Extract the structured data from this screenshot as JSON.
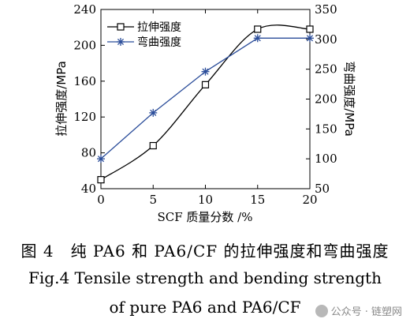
{
  "chart_data": {
    "type": "line",
    "x_categories_label": "SCF 质量分数 /%",
    "x": [
      0,
      5,
      10,
      15,
      20
    ],
    "xlim": [
      0,
      20
    ],
    "x_ticks": [
      0,
      5,
      10,
      15,
      20
    ],
    "ylabel_left": "拉伸强度/MPa",
    "ylim_left": [
      40,
      240
    ],
    "y_ticks_left": [
      40,
      80,
      120,
      160,
      200,
      240
    ],
    "ylabel_right": "弯曲强度/MPa",
    "ylim_right": [
      50,
      350
    ],
    "y_ticks_right": [
      50,
      100,
      150,
      200,
      250,
      300,
      350
    ],
    "legend_position": "top-left",
    "series": [
      {
        "name": "拉伸强度",
        "axis": "left",
        "marker": "square",
        "color": "#000000",
        "values": [
          50,
          88,
          156,
          218,
          218
        ]
      },
      {
        "name": "弯曲强度",
        "axis": "right",
        "marker": "asterisk",
        "color": "#2b4d9a",
        "values": [
          100,
          177,
          246,
          302,
          302
        ]
      }
    ]
  },
  "caption": {
    "cn": "图 4　纯 PA6 和 PA6/CF 的拉伸强度和弯曲强度",
    "en_line1": "Fig.4 Tensile strength and bending strength",
    "en_line2": "of pure PA6 and PA6/CF"
  },
  "watermark": {
    "text": "公众号 · 链塑网"
  }
}
